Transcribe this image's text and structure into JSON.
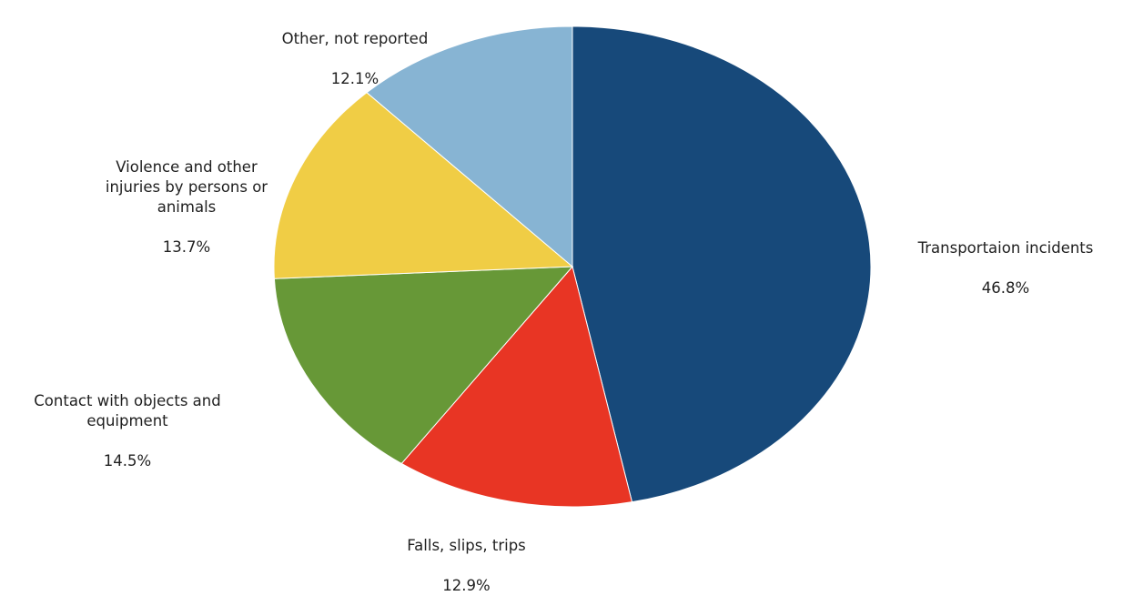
{
  "chart_data": {
    "type": "pie",
    "title": "",
    "start_angle_deg": 0,
    "direction": "clockwise",
    "slices": [
      {
        "label": "Transportaion incidents",
        "value": 46.8,
        "value_text": "46.8%",
        "color": "#17497a"
      },
      {
        "label": "Falls, slips, trips",
        "value": 12.9,
        "value_text": "12.9%",
        "color": "#e83524"
      },
      {
        "label": "Contact with objects and equipment",
        "value": 14.5,
        "value_text": "14.5%",
        "color": "#679837"
      },
      {
        "label": "Violence and other injuries by persons or animals",
        "value": 13.7,
        "value_text": "13.7%",
        "color": "#f0cd45"
      },
      {
        "label": "Other, not reported",
        "value": 12.1,
        "value_text": "12.1%",
        "color": "#87b4d3"
      }
    ],
    "legend": "none",
    "data_labels": "outside"
  }
}
